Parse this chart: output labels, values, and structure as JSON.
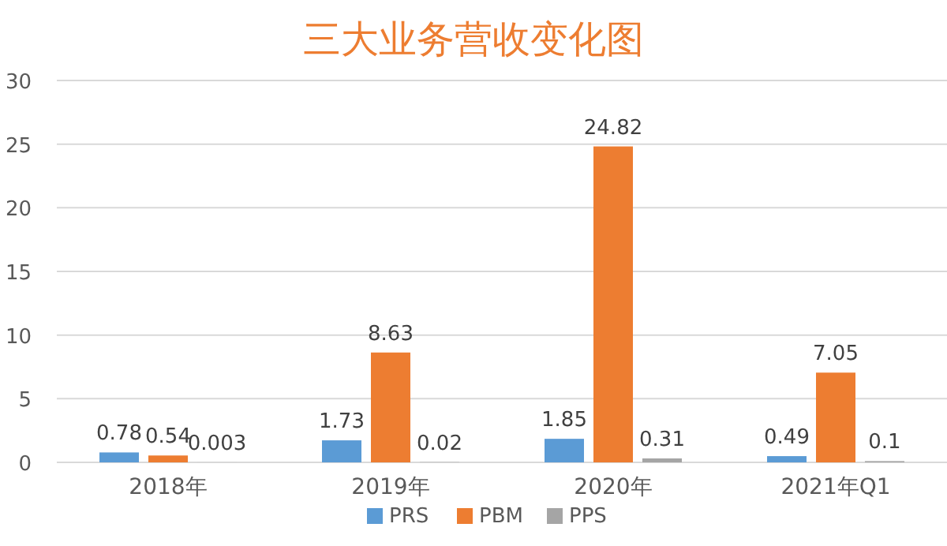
{
  "chart_data": {
    "type": "bar",
    "title": "三大业务营收变化图",
    "categories": [
      "2018年",
      "2019年",
      "2020年",
      "2021年Q1"
    ],
    "series": [
      {
        "name": "PRS",
        "color": "#5b9bd5",
        "values": [
          0.78,
          1.73,
          1.85,
          0.49
        ]
      },
      {
        "name": "PBM",
        "color": "#ed7d31",
        "values": [
          0.54,
          8.63,
          24.82,
          7.05
        ]
      },
      {
        "name": "PPS",
        "color": "#a5a5a5",
        "values": [
          0.003,
          0.02,
          0.31,
          0.1
        ]
      }
    ],
    "ylim": [
      0,
      30
    ],
    "yticks": [
      0,
      5,
      10,
      15,
      20,
      25,
      30
    ],
    "grid": "y",
    "legend": "bottom",
    "data_labels": true
  }
}
